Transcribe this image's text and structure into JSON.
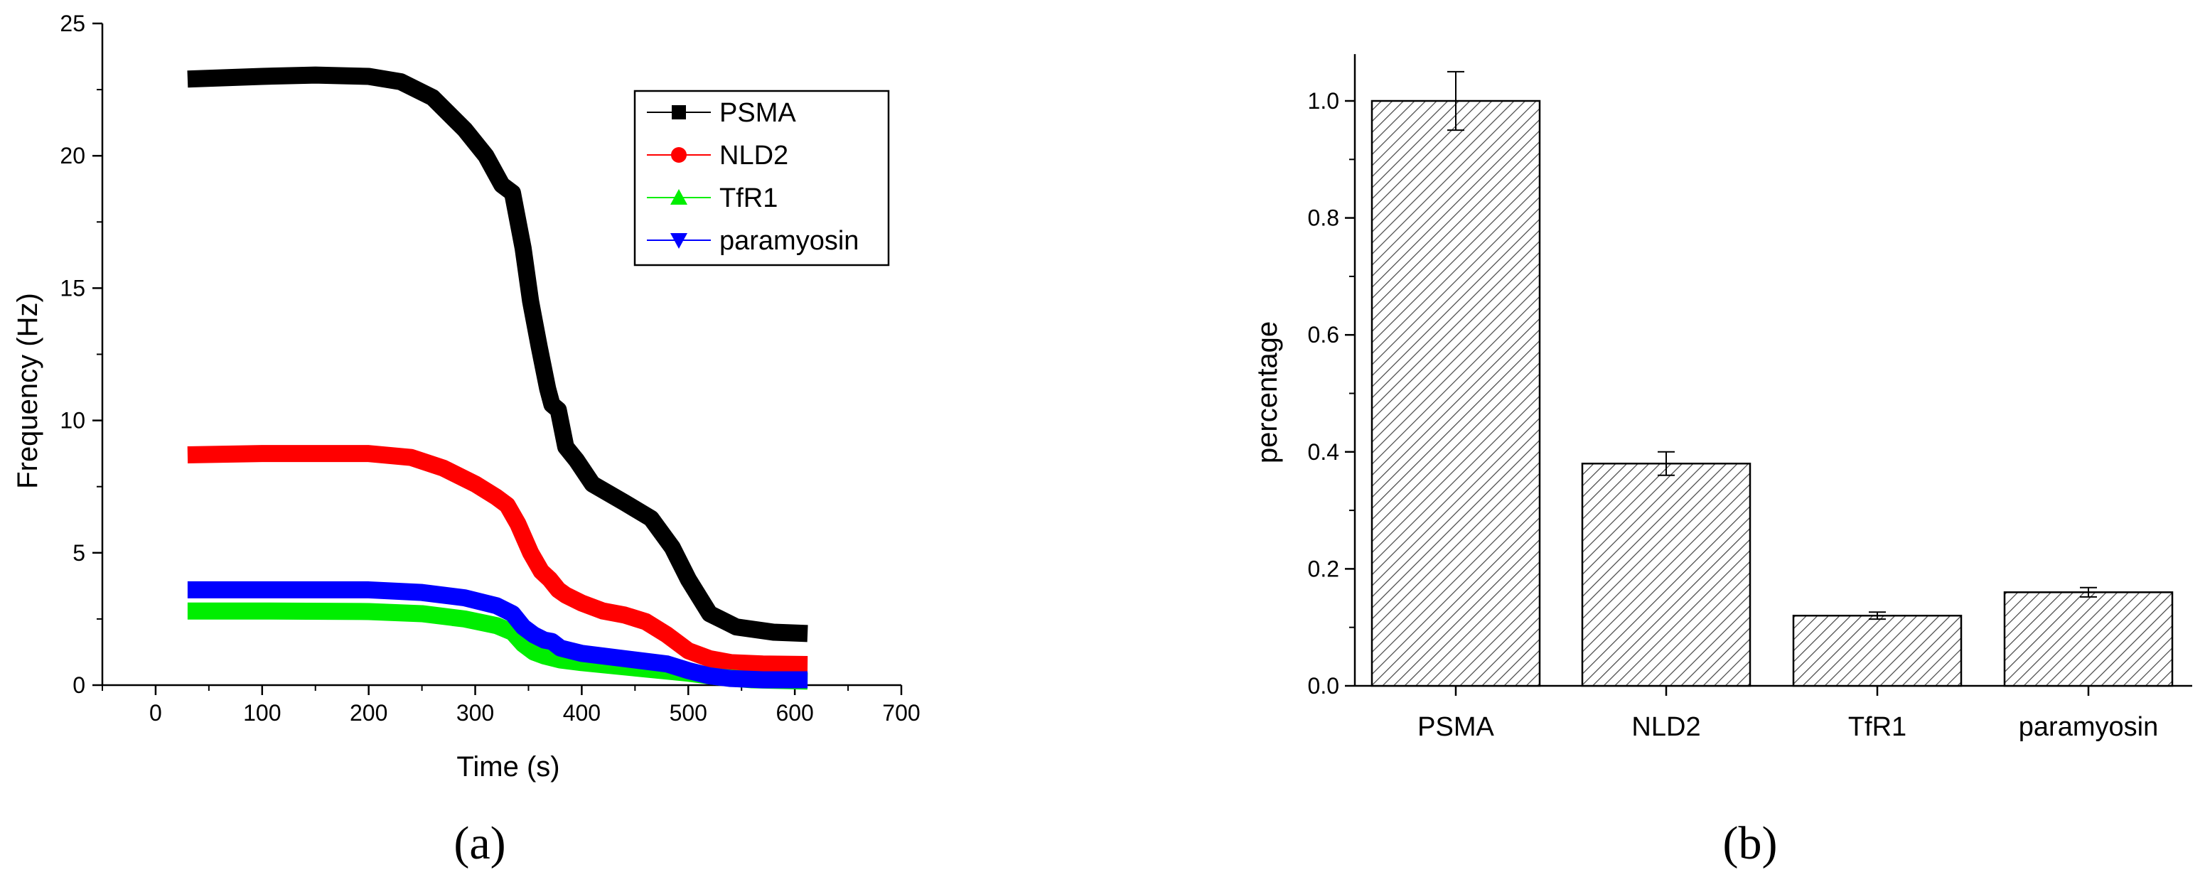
{
  "chart_data": [
    {
      "panel": "(a)",
      "type": "line",
      "xlabel": "Time (s)",
      "ylabel": "Frequency (Hz)",
      "xlim": [
        -50,
        700
      ],
      "ylim": [
        0,
        25
      ],
      "xticks": [
        0,
        100,
        200,
        300,
        400,
        500,
        600,
        700
      ],
      "yticks": [
        0,
        5,
        10,
        15,
        20,
        25
      ],
      "legend": {
        "position": "top-right",
        "entries": [
          "PSMA",
          "NLD2",
          "TfR1",
          "paramyosin"
        ]
      },
      "series": [
        {
          "name": "PSMA",
          "color": "#000000",
          "marker": "square",
          "x": [
            30,
            100,
            150,
            200,
            230,
            260,
            290,
            310,
            325,
            335,
            345,
            352,
            360,
            368,
            372,
            378,
            385,
            395,
            410,
            440,
            465,
            485,
            500,
            520,
            545,
            580,
            612
          ],
          "y": [
            22.9,
            23.0,
            23.05,
            23.0,
            22.8,
            22.2,
            21.0,
            20.0,
            18.9,
            18.6,
            16.5,
            14.5,
            12.8,
            11.2,
            10.6,
            10.4,
            9.0,
            8.5,
            7.6,
            6.9,
            6.3,
            5.2,
            4.0,
            2.7,
            2.2,
            2.0,
            1.95
          ]
        },
        {
          "name": "NLD2",
          "color": "#ff0000",
          "marker": "circle",
          "x": [
            30,
            100,
            200,
            240,
            270,
            300,
            320,
            330,
            340,
            352,
            362,
            370,
            378,
            385,
            400,
            420,
            440,
            460,
            480,
            500,
            520,
            540,
            570,
            612
          ],
          "y": [
            8.7,
            8.75,
            8.75,
            8.6,
            8.2,
            7.6,
            7.1,
            6.8,
            6.1,
            5.0,
            4.3,
            4.0,
            3.6,
            3.4,
            3.1,
            2.8,
            2.65,
            2.4,
            1.9,
            1.3,
            1.0,
            0.85,
            0.8,
            0.78
          ]
        },
        {
          "name": "TfR1",
          "color": "#00ee00",
          "marker": "triangle-up",
          "x": [
            30,
            100,
            200,
            250,
            290,
            320,
            335,
            345,
            355,
            365,
            380,
            400,
            450,
            500,
            530,
            560,
            612
          ],
          "y": [
            2.8,
            2.8,
            2.78,
            2.7,
            2.5,
            2.25,
            2.0,
            1.55,
            1.25,
            1.1,
            0.95,
            0.85,
            0.65,
            0.45,
            0.3,
            0.2,
            0.15
          ]
        },
        {
          "name": "paramyosin",
          "color": "#0000ff",
          "marker": "triangle-down",
          "x": [
            30,
            100,
            200,
            250,
            290,
            320,
            335,
            345,
            355,
            365,
            372,
            380,
            400,
            440,
            480,
            500,
            520,
            540,
            570,
            612
          ],
          "y": [
            3.6,
            3.6,
            3.6,
            3.5,
            3.3,
            3.0,
            2.7,
            2.2,
            1.9,
            1.7,
            1.65,
            1.4,
            1.2,
            1.0,
            0.8,
            0.55,
            0.35,
            0.25,
            0.2,
            0.2
          ]
        }
      ]
    },
    {
      "panel": "(b)",
      "type": "bar",
      "xlabel": "",
      "ylabel": "percentage",
      "ylim": [
        0,
        1.08
      ],
      "yticks": [
        "0.0",
        "0.2",
        "0.4",
        "0.6",
        "0.8",
        "1.0"
      ],
      "categories": [
        "PSMA",
        "NLD2",
        "TfR1",
        "paramyosin"
      ],
      "values": [
        1.0,
        0.38,
        0.12,
        0.16
      ],
      "errors": [
        0.05,
        0.02,
        0.006,
        0.008
      ],
      "pattern": "diagonal hatch"
    }
  ]
}
